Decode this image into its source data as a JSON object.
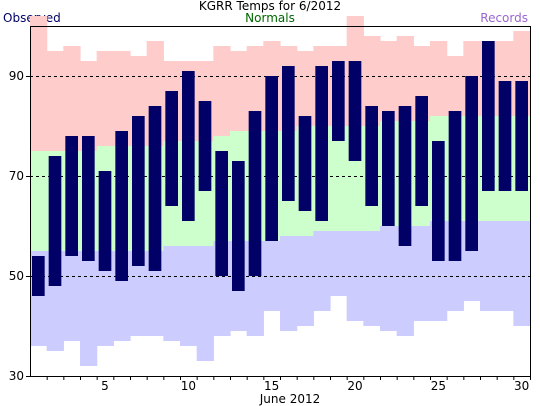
{
  "header": {
    "title": "KGRR Temps for 6/2012",
    "legend_observed": "Observed",
    "legend_normals": "Normals",
    "legend_records": "Records"
  },
  "colors": {
    "observed": "#000066",
    "normals_label": "#006600",
    "records_label": "#9966cc",
    "record_high_band": "#ffcccc",
    "normal_band": "#ccffcc",
    "record_low_band": "#ccccff",
    "grid": "#000000"
  },
  "chart_data": {
    "type": "bar",
    "title": "KGRR Temps for 6/2012",
    "xlabel": "June 2012",
    "ylabel": "",
    "ylim": [
      30,
      100
    ],
    "grid": "dashed horizontal at 50, 70, 90",
    "yticks": [
      30,
      50,
      70,
      90
    ],
    "xticks": [
      5,
      10,
      15,
      20,
      25,
      30
    ],
    "days": [
      1,
      2,
      3,
      4,
      5,
      6,
      7,
      8,
      9,
      10,
      11,
      12,
      13,
      14,
      15,
      16,
      17,
      18,
      19,
      20,
      21,
      22,
      23,
      24,
      25,
      26,
      27,
      28,
      29,
      30
    ],
    "series": [
      {
        "name": "Observed",
        "kind": "high",
        "values": [
          54,
          74,
          78,
          78,
          71,
          79,
          82,
          84,
          87,
          91,
          85,
          75,
          73,
          83,
          90,
          92,
          82,
          92,
          93,
          93,
          84,
          83,
          84,
          86,
          77,
          83,
          90,
          97,
          89,
          89
        ]
      },
      {
        "name": "Observed",
        "kind": "low",
        "values": [
          46,
          48,
          54,
          53,
          51,
          49,
          52,
          51,
          64,
          61,
          67,
          50,
          47,
          50,
          57,
          65,
          63,
          61,
          77,
          73,
          64,
          60,
          56,
          64,
          53,
          53,
          55,
          67,
          67,
          67
        ]
      },
      {
        "name": "Records",
        "kind": "record_high",
        "values": [
          102,
          95,
          96,
          93,
          95,
          95,
          94,
          97,
          93,
          93,
          93,
          96,
          95,
          96,
          97,
          96,
          95,
          96,
          96,
          102,
          98,
          97,
          98,
          96,
          97,
          94,
          97,
          97,
          97,
          99
        ]
      },
      {
        "name": "Normals",
        "kind": "normal_high",
        "values": [
          75,
          75,
          75,
          75,
          76,
          76,
          76,
          76,
          77,
          77,
          77,
          78,
          79,
          79,
          79,
          79,
          80,
          80,
          80,
          80,
          80,
          81,
          81,
          81,
          82,
          82,
          82,
          82,
          82,
          82
        ]
      },
      {
        "name": "Normals",
        "kind": "normal_low",
        "values": [
          55,
          55,
          55,
          55,
          55,
          55,
          55,
          55,
          56,
          56,
          56,
          57,
          57,
          57,
          57,
          58,
          58,
          59,
          59,
          59,
          59,
          60,
          60,
          60,
          61,
          61,
          61,
          61,
          61,
          61
        ]
      },
      {
        "name": "Records",
        "kind": "record_low",
        "values": [
          36,
          35,
          37,
          32,
          36,
          37,
          38,
          38,
          37,
          36,
          33,
          38,
          39,
          38,
          43,
          39,
          40,
          43,
          46,
          41,
          40,
          39,
          38,
          41,
          41,
          43,
          45,
          43,
          43,
          40
        ]
      }
    ]
  }
}
